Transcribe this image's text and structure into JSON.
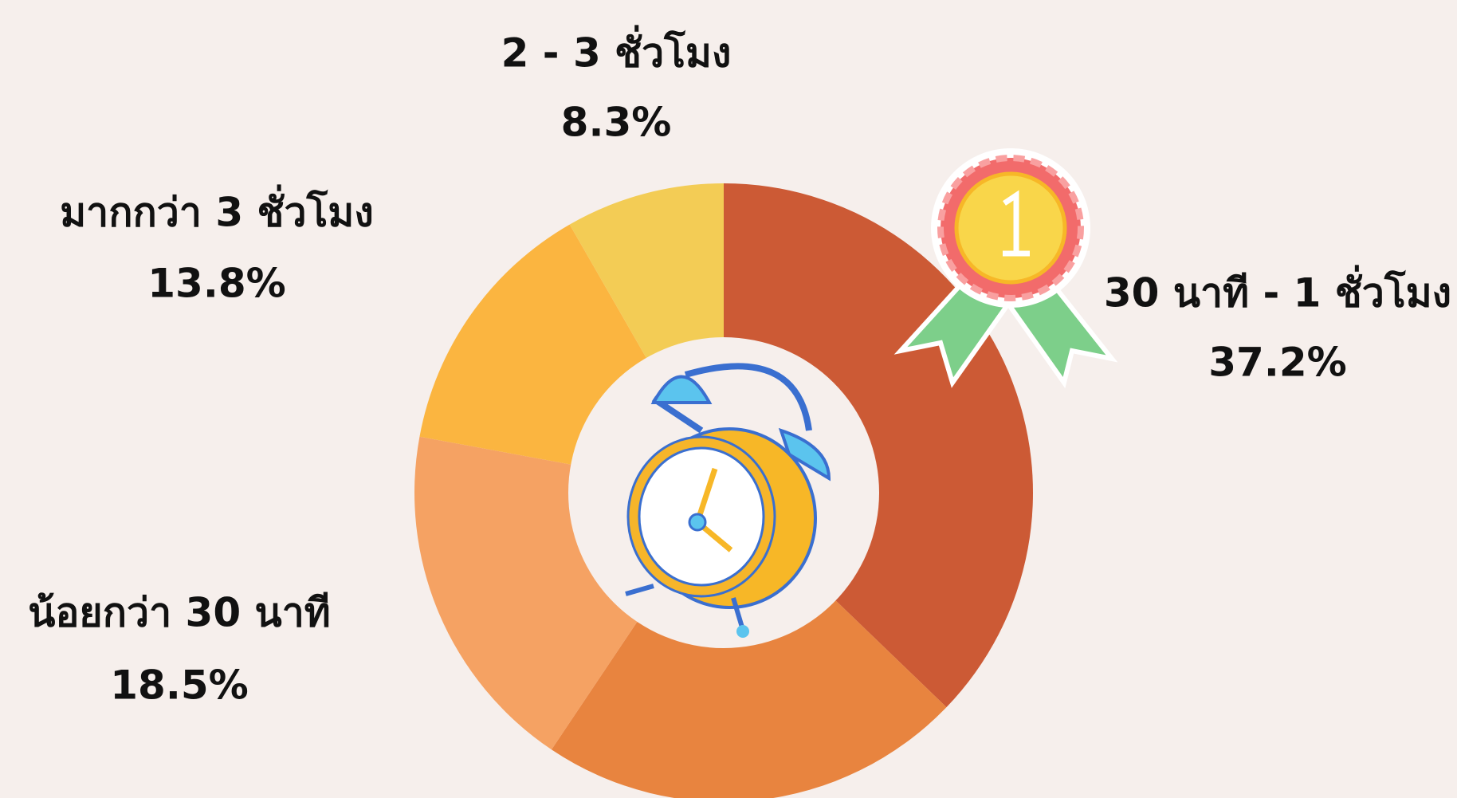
{
  "chart_data": {
    "type": "donut",
    "categories": [
      "30 นาที - 1 ชั่วโมง",
      null,
      "น้อยกว่า 30 นาที",
      "มากกว่า 3 ชั่วโมง",
      "2 - 3 ชั่วโมง"
    ],
    "values": [
      37.2,
      22.2,
      18.5,
      13.8,
      8.3
    ],
    "value_labels": [
      "37.2%",
      null,
      "18.5%",
      "13.8%",
      "8.3%"
    ],
    "colors": [
      "#cc5a35",
      "#e8843f",
      "#f5a263",
      "#fbb540",
      "#f3cc55"
    ]
  }
}
